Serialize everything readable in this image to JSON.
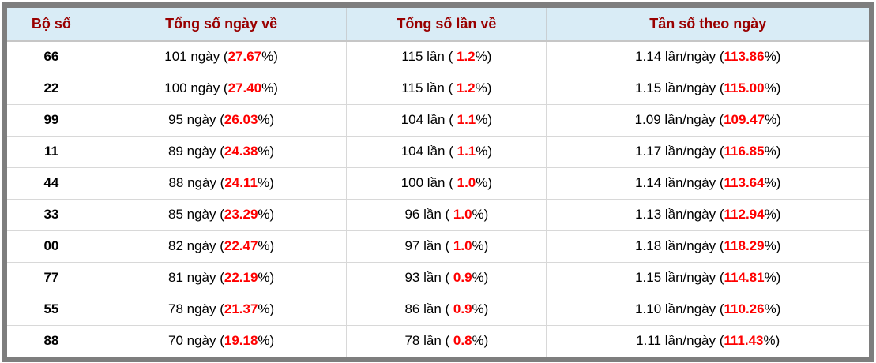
{
  "colors": {
    "frame_border": "#7e7e7e",
    "header_bg": "#d9ecf6",
    "header_text": "#990000",
    "highlight_red": "#ff0000",
    "cell_border": "#d8d8d8",
    "body_text": "#000000"
  },
  "table": {
    "columns": [
      {
        "label": "Bộ số"
      },
      {
        "label": "Tổng số ngày về"
      },
      {
        "label": "Tổng số lần về"
      },
      {
        "label": "Tần số theo ngày"
      }
    ],
    "rows": [
      {
        "pair": "66",
        "days_pre": "101 ngày (",
        "days_red": "27.67",
        "days_suf": "%)",
        "times_pre": "115 lần ( ",
        "times_red": "1.2",
        "times_suf": "%)",
        "freq_pre": "1.14 lần/ngày (",
        "freq_red": "113.86",
        "freq_suf": "%)"
      },
      {
        "pair": "22",
        "days_pre": "100 ngày (",
        "days_red": "27.40",
        "days_suf": "%)",
        "times_pre": "115 lần ( ",
        "times_red": "1.2",
        "times_suf": "%)",
        "freq_pre": "1.15 lần/ngày (",
        "freq_red": "115.00",
        "freq_suf": "%)"
      },
      {
        "pair": "99",
        "days_pre": "95 ngày (",
        "days_red": "26.03",
        "days_suf": "%)",
        "times_pre": "104 lần ( ",
        "times_red": "1.1",
        "times_suf": "%)",
        "freq_pre": "1.09 lần/ngày (",
        "freq_red": "109.47",
        "freq_suf": "%)"
      },
      {
        "pair": "11",
        "days_pre": "89 ngày (",
        "days_red": "24.38",
        "days_suf": "%)",
        "times_pre": "104 lần ( ",
        "times_red": "1.1",
        "times_suf": "%)",
        "freq_pre": "1.17 lần/ngày (",
        "freq_red": "116.85",
        "freq_suf": "%)"
      },
      {
        "pair": "44",
        "days_pre": "88 ngày (",
        "days_red": "24.11",
        "days_suf": "%)",
        "times_pre": "100 lần ( ",
        "times_red": "1.0",
        "times_suf": "%)",
        "freq_pre": "1.14 lần/ngày (",
        "freq_red": "113.64",
        "freq_suf": "%)"
      },
      {
        "pair": "33",
        "days_pre": "85 ngày (",
        "days_red": "23.29",
        "days_suf": "%)",
        "times_pre": "96 lần ( ",
        "times_red": "1.0",
        "times_suf": "%)",
        "freq_pre": "1.13 lần/ngày (",
        "freq_red": "112.94",
        "freq_suf": "%)"
      },
      {
        "pair": "00",
        "days_pre": "82 ngày (",
        "days_red": "22.47",
        "days_suf": "%)",
        "times_pre": "97 lần ( ",
        "times_red": "1.0",
        "times_suf": "%)",
        "freq_pre": "1.18 lần/ngày (",
        "freq_red": "118.29",
        "freq_suf": "%)"
      },
      {
        "pair": "77",
        "days_pre": "81 ngày (",
        "days_red": "22.19",
        "days_suf": "%)",
        "times_pre": "93 lần ( ",
        "times_red": "0.9",
        "times_suf": "%)",
        "freq_pre": "1.15 lần/ngày (",
        "freq_red": "114.81",
        "freq_suf": "%)"
      },
      {
        "pair": "55",
        "days_pre": "78 ngày (",
        "days_red": "21.37",
        "days_suf": "%)",
        "times_pre": "86 lần ( ",
        "times_red": "0.9",
        "times_suf": "%)",
        "freq_pre": "1.10 lần/ngày (",
        "freq_red": "110.26",
        "freq_suf": "%)"
      },
      {
        "pair": "88",
        "days_pre": "70 ngày (",
        "days_red": "19.18",
        "days_suf": "%)",
        "times_pre": "78 lần ( ",
        "times_red": "0.8",
        "times_suf": "%)",
        "freq_pre": "1.11 lần/ngày (",
        "freq_red": "111.43",
        "freq_suf": "%)"
      }
    ]
  }
}
